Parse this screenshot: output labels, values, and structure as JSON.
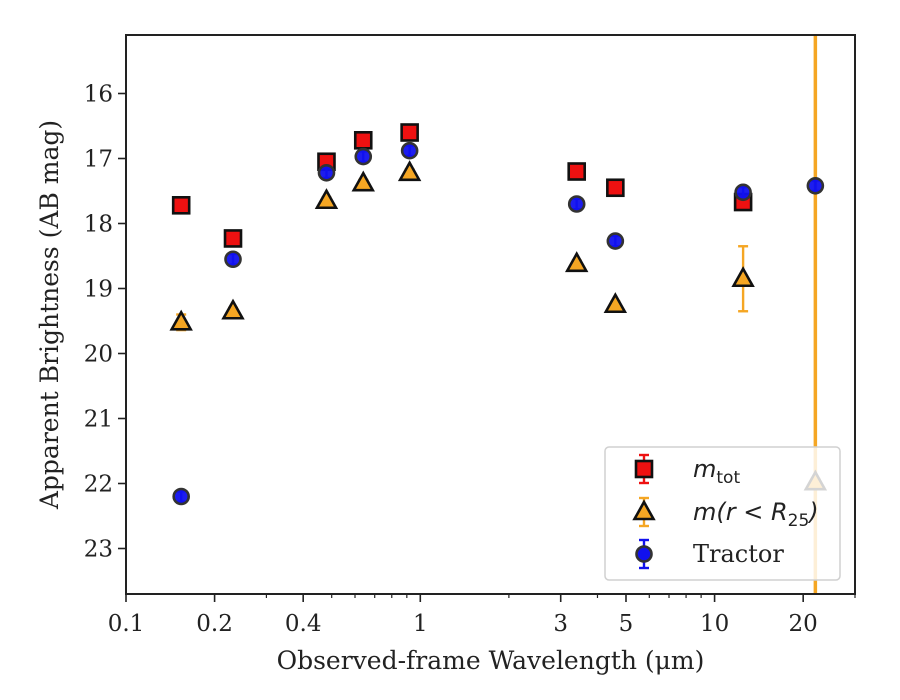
{
  "chart_data": {
    "type": "scatter",
    "title": "",
    "xlabel": "Observed-frame Wavelength (μm)",
    "ylabel": "Apparent Brightness (AB mag)",
    "xscale": "log",
    "xlim": [
      0.1,
      30
    ],
    "ylim": [
      23.7,
      15.1
    ],
    "y_inverted": true,
    "grid": false,
    "legend_position": "bottom-right",
    "x_ticks": [
      {
        "value": 0.1,
        "label": "0.1"
      },
      {
        "value": 0.2,
        "label": "0.2"
      },
      {
        "value": 0.4,
        "label": "0.4"
      },
      {
        "value": 1,
        "label": "1"
      },
      {
        "value": 3,
        "label": "3"
      },
      {
        "value": 5,
        "label": "5"
      },
      {
        "value": 10,
        "label": "10"
      },
      {
        "value": 20,
        "label": "20"
      }
    ],
    "y_ticks": [
      {
        "value": 16,
        "label": "16"
      },
      {
        "value": 17,
        "label": "17"
      },
      {
        "value": 18,
        "label": "18"
      },
      {
        "value": 19,
        "label": "19"
      },
      {
        "value": 20,
        "label": "20"
      },
      {
        "value": 21,
        "label": "21"
      },
      {
        "value": 22,
        "label": "22"
      },
      {
        "value": 23,
        "label": "23"
      }
    ],
    "vertical_line": {
      "x": 22,
      "color": "#f5a623"
    },
    "series": [
      {
        "name": "m_tot",
        "legend_main": "m",
        "legend_sub": "tot",
        "marker": "square",
        "color": "#ee1111",
        "edge_color": "#111111",
        "points": [
          {
            "x": 0.154,
            "y": 17.72,
            "err": 0.05
          },
          {
            "x": 0.231,
            "y": 18.23,
            "err": 0.05
          },
          {
            "x": 0.48,
            "y": 17.05,
            "err": 0.05
          },
          {
            "x": 0.64,
            "y": 16.72,
            "err": 0.05
          },
          {
            "x": 0.92,
            "y": 16.6,
            "err": 0.05
          },
          {
            "x": 3.4,
            "y": 17.2,
            "err": 0.05
          },
          {
            "x": 4.6,
            "y": 17.45,
            "err": 0.05
          },
          {
            "x": 12.5,
            "y": 17.67,
            "err": 0.07
          }
        ]
      },
      {
        "name": "m(r < R_25)",
        "legend_main": "m(r < R",
        "legend_sub": "25",
        "legend_tail": ")",
        "marker": "triangle",
        "color": "#f5a623",
        "edge_color": "#111111",
        "points": [
          {
            "x": 0.154,
            "y": 19.52,
            "err": 0.12
          },
          {
            "x": 0.231,
            "y": 19.35,
            "err": 0.05
          },
          {
            "x": 0.48,
            "y": 17.65,
            "err": 0.05
          },
          {
            "x": 0.64,
            "y": 17.38,
            "err": 0.05
          },
          {
            "x": 0.92,
            "y": 17.22,
            "err": 0.05
          },
          {
            "x": 3.4,
            "y": 18.62,
            "err": 0.05
          },
          {
            "x": 4.6,
            "y": 19.25,
            "err": 0.05
          },
          {
            "x": 12.5,
            "y": 18.85,
            "err": 0.5
          },
          {
            "x": 22,
            "y": 21.98,
            "err": 0.05
          }
        ]
      },
      {
        "name": "Tractor",
        "legend_main": "Tractor",
        "marker": "circle",
        "color": "#1111ee",
        "edge_color": "#333333",
        "points": [
          {
            "x": 0.154,
            "y": 22.2,
            "err": 0.08
          },
          {
            "x": 0.231,
            "y": 18.55,
            "err": 0.08
          },
          {
            "x": 0.48,
            "y": 17.22,
            "err": 0.08
          },
          {
            "x": 0.64,
            "y": 16.97,
            "err": 0.08
          },
          {
            "x": 0.92,
            "y": 16.88,
            "err": 0.08
          },
          {
            "x": 3.4,
            "y": 17.7,
            "err": 0.08
          },
          {
            "x": 4.6,
            "y": 18.27,
            "err": 0.08
          },
          {
            "x": 12.5,
            "y": 17.52,
            "err": 0.08
          },
          {
            "x": 22,
            "y": 17.42,
            "err": 0.08
          }
        ]
      }
    ]
  }
}
